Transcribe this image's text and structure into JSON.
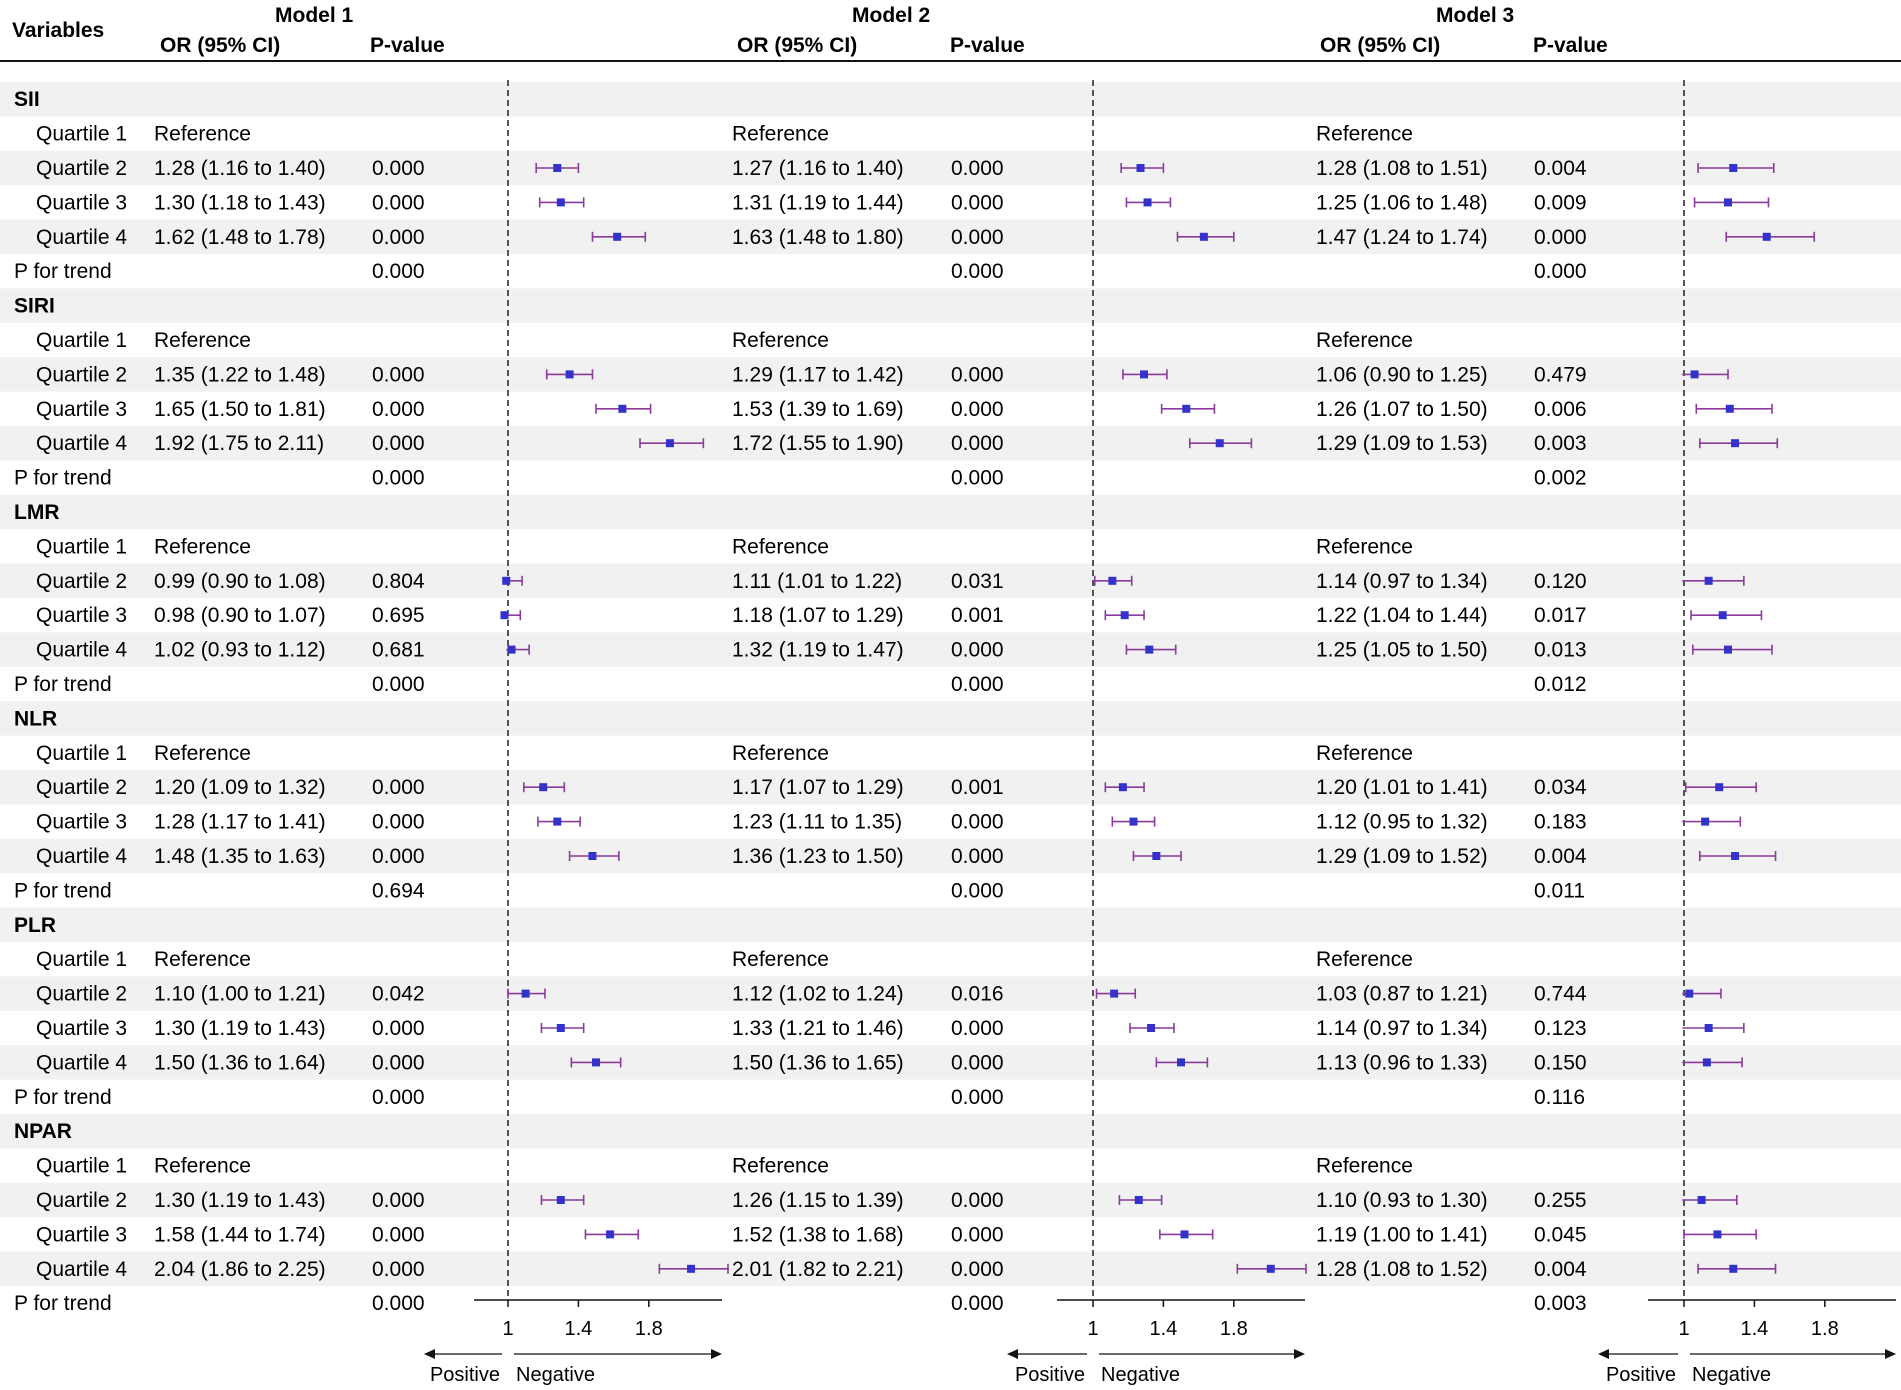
{
  "headers": {
    "variables": "Variables",
    "or_label": "OR (95% CI)",
    "p_label": "P-value",
    "models": [
      "Model 1",
      "Model 2",
      "Model 3"
    ]
  },
  "labels": {
    "reference": "Reference",
    "p_trend": "P for trend",
    "quartiles": [
      "Quartile 1",
      "Quartile 2",
      "Quartile 3",
      "Quartile 4"
    ],
    "positive": "Positive",
    "negative": "Negative"
  },
  "colors": {
    "marker": "#3333cc",
    "whisker": "#8a3b9b",
    "stripe": "#f1f1f1",
    "line": "#111111"
  },
  "chart_data": {
    "type": "forest",
    "xlim": [
      0.99,
      2.25
    ],
    "ticks": [
      1,
      1.4,
      1.8
    ],
    "tick_labels": [
      "1",
      "1.4",
      "1.8"
    ],
    "reference_line": 1,
    "groups": [
      {
        "name": "SII",
        "models": [
          {
            "rows": [
              {
                "or": 1.28,
                "lo": 1.16,
                "hi": 1.4,
                "text": "1.28 (1.16 to 1.40)",
                "p": "0.000"
              },
              {
                "or": 1.3,
                "lo": 1.18,
                "hi": 1.43,
                "text": "1.30 (1.18 to 1.43)",
                "p": "0.000"
              },
              {
                "or": 1.62,
                "lo": 1.48,
                "hi": 1.78,
                "text": "1.62 (1.48 to 1.78)",
                "p": "0.000"
              }
            ],
            "trend": "0.000"
          },
          {
            "rows": [
              {
                "or": 1.27,
                "lo": 1.16,
                "hi": 1.4,
                "text": "1.27 (1.16 to 1.40)",
                "p": "0.000"
              },
              {
                "or": 1.31,
                "lo": 1.19,
                "hi": 1.44,
                "text": "1.31 (1.19 to 1.44)",
                "p": "0.000"
              },
              {
                "or": 1.63,
                "lo": 1.48,
                "hi": 1.8,
                "text": "1.63 (1.48 to 1.80)",
                "p": "0.000"
              }
            ],
            "trend": "0.000"
          },
          {
            "rows": [
              {
                "or": 1.28,
                "lo": 1.08,
                "hi": 1.51,
                "text": "1.28 (1.08 to 1.51)",
                "p": "0.004"
              },
              {
                "or": 1.25,
                "lo": 1.06,
                "hi": 1.48,
                "text": "1.25 (1.06 to 1.48)",
                "p": "0.009"
              },
              {
                "or": 1.47,
                "lo": 1.24,
                "hi": 1.74,
                "text": "1.47 (1.24 to 1.74)",
                "p": "0.000"
              }
            ],
            "trend": "0.000"
          }
        ]
      },
      {
        "name": "SIRI",
        "models": [
          {
            "rows": [
              {
                "or": 1.35,
                "lo": 1.22,
                "hi": 1.48,
                "text": "1.35 (1.22 to 1.48)",
                "p": "0.000"
              },
              {
                "or": 1.65,
                "lo": 1.5,
                "hi": 1.81,
                "text": "1.65 (1.50 to 1.81)",
                "p": "0.000"
              },
              {
                "or": 1.92,
                "lo": 1.75,
                "hi": 2.11,
                "text": "1.92 (1.75 to 2.11)",
                "p": "0.000"
              }
            ],
            "trend": "0.000"
          },
          {
            "rows": [
              {
                "or": 1.29,
                "lo": 1.17,
                "hi": 1.42,
                "text": "1.29 (1.17 to 1.42)",
                "p": "0.000"
              },
              {
                "or": 1.53,
                "lo": 1.39,
                "hi": 1.69,
                "text": "1.53 (1.39 to 1.69)",
                "p": "0.000"
              },
              {
                "or": 1.72,
                "lo": 1.55,
                "hi": 1.9,
                "text": "1.72 (1.55 to 1.90)",
                "p": "0.000"
              }
            ],
            "trend": "0.000"
          },
          {
            "rows": [
              {
                "or": 1.06,
                "lo": 0.9,
                "hi": 1.25,
                "text": "1.06 (0.90 to 1.25)",
                "p": "0.479"
              },
              {
                "or": 1.26,
                "lo": 1.07,
                "hi": 1.5,
                "text": "1.26 (1.07 to 1.50)",
                "p": "0.006"
              },
              {
                "or": 1.29,
                "lo": 1.09,
                "hi": 1.53,
                "text": "1.29 (1.09 to 1.53)",
                "p": "0.003"
              }
            ],
            "trend": "0.002"
          }
        ]
      },
      {
        "name": "LMR",
        "models": [
          {
            "rows": [
              {
                "or": 0.99,
                "lo": 0.9,
                "hi": 1.08,
                "text": "0.99 (0.90 to 1.08)",
                "p": "0.804"
              },
              {
                "or": 0.98,
                "lo": 0.9,
                "hi": 1.07,
                "text": "0.98 (0.90 to 1.07)",
                "p": "0.695"
              },
              {
                "or": 1.02,
                "lo": 0.93,
                "hi": 1.12,
                "text": "1.02 (0.93 to 1.12)",
                "p": "0.681"
              }
            ],
            "trend": "0.000"
          },
          {
            "rows": [
              {
                "or": 1.11,
                "lo": 1.01,
                "hi": 1.22,
                "text": "1.11 (1.01 to 1.22)",
                "p": "0.031"
              },
              {
                "or": 1.18,
                "lo": 1.07,
                "hi": 1.29,
                "text": "1.18 (1.07 to 1.29)",
                "p": "0.001"
              },
              {
                "or": 1.32,
                "lo": 1.19,
                "hi": 1.47,
                "text": "1.32 (1.19 to 1.47)",
                "p": "0.000"
              }
            ],
            "trend": "0.000"
          },
          {
            "rows": [
              {
                "or": 1.14,
                "lo": 0.97,
                "hi": 1.34,
                "text": "1.14 (0.97 to 1.34)",
                "p": "0.120"
              },
              {
                "or": 1.22,
                "lo": 1.04,
                "hi": 1.44,
                "text": "1.22 (1.04 to 1.44)",
                "p": "0.017"
              },
              {
                "or": 1.25,
                "lo": 1.05,
                "hi": 1.5,
                "text": "1.25 (1.05 to 1.50)",
                "p": "0.013"
              }
            ],
            "trend": "0.012"
          }
        ]
      },
      {
        "name": "NLR",
        "models": [
          {
            "rows": [
              {
                "or": 1.2,
                "lo": 1.09,
                "hi": 1.32,
                "text": "1.20 (1.09 to 1.32)",
                "p": "0.000"
              },
              {
                "or": 1.28,
                "lo": 1.17,
                "hi": 1.41,
                "text": "1.28 (1.17 to 1.41)",
                "p": "0.000"
              },
              {
                "or": 1.48,
                "lo": 1.35,
                "hi": 1.63,
                "text": "1.48 (1.35 to 1.63)",
                "p": "0.000"
              }
            ],
            "trend": "0.694"
          },
          {
            "rows": [
              {
                "or": 1.17,
                "lo": 1.07,
                "hi": 1.29,
                "text": "1.17 (1.07 to 1.29)",
                "p": "0.001"
              },
              {
                "or": 1.23,
                "lo": 1.11,
                "hi": 1.35,
                "text": "1.23 (1.11 to 1.35)",
                "p": "0.000"
              },
              {
                "or": 1.36,
                "lo": 1.23,
                "hi": 1.5,
                "text": "1.36 (1.23 to 1.50)",
                "p": "0.000"
              }
            ],
            "trend": "0.000"
          },
          {
            "rows": [
              {
                "or": 1.2,
                "lo": 1.01,
                "hi": 1.41,
                "text": "1.20 (1.01 to 1.41)",
                "p": "0.034"
              },
              {
                "or": 1.12,
                "lo": 0.95,
                "hi": 1.32,
                "text": "1.12 (0.95 to 1.32)",
                "p": "0.183"
              },
              {
                "or": 1.29,
                "lo": 1.09,
                "hi": 1.52,
                "text": "1.29 (1.09 to 1.52)",
                "p": "0.004"
              }
            ],
            "trend": "0.011"
          }
        ]
      },
      {
        "name": "PLR",
        "models": [
          {
            "rows": [
              {
                "or": 1.1,
                "lo": 1.0,
                "hi": 1.21,
                "text": "1.10 (1.00 to 1.21)",
                "p": "0.042"
              },
              {
                "or": 1.3,
                "lo": 1.19,
                "hi": 1.43,
                "text": "1.30 (1.19 to 1.43)",
                "p": "0.000"
              },
              {
                "or": 1.5,
                "lo": 1.36,
                "hi": 1.64,
                "text": "1.50 (1.36 to 1.64)",
                "p": "0.000"
              }
            ],
            "trend": "0.000"
          },
          {
            "rows": [
              {
                "or": 1.12,
                "lo": 1.02,
                "hi": 1.24,
                "text": "1.12 (1.02 to 1.24)",
                "p": "0.016"
              },
              {
                "or": 1.33,
                "lo": 1.21,
                "hi": 1.46,
                "text": "1.33 (1.21 to 1.46)",
                "p": "0.000"
              },
              {
                "or": 1.5,
                "lo": 1.36,
                "hi": 1.65,
                "text": "1.50 (1.36 to 1.65)",
                "p": "0.000"
              }
            ],
            "trend": "0.000"
          },
          {
            "rows": [
              {
                "or": 1.03,
                "lo": 0.87,
                "hi": 1.21,
                "text": "1.03 (0.87 to 1.21)",
                "p": "0.744"
              },
              {
                "or": 1.14,
                "lo": 0.97,
                "hi": 1.34,
                "text": "1.14 (0.97 to 1.34)",
                "p": "0.123"
              },
              {
                "or": 1.13,
                "lo": 0.96,
                "hi": 1.33,
                "text": "1.13 (0.96 to 1.33)",
                "p": "0.150"
              }
            ],
            "trend": "0.116"
          }
        ]
      },
      {
        "name": "NPAR",
        "models": [
          {
            "rows": [
              {
                "or": 1.3,
                "lo": 1.19,
                "hi": 1.43,
                "text": "1.30 (1.19 to 1.43)",
                "p": "0.000"
              },
              {
                "or": 1.58,
                "lo": 1.44,
                "hi": 1.74,
                "text": "1.58 (1.44 to 1.74)",
                "p": "0.000"
              },
              {
                "or": 2.04,
                "lo": 1.86,
                "hi": 2.25,
                "text": "2.04 (1.86 to 2.25)",
                "p": "0.000"
              }
            ],
            "trend": "0.000"
          },
          {
            "rows": [
              {
                "or": 1.26,
                "lo": 1.15,
                "hi": 1.39,
                "text": "1.26 (1.15 to 1.39)",
                "p": "0.000"
              },
              {
                "or": 1.52,
                "lo": 1.38,
                "hi": 1.68,
                "text": "1.52 (1.38 to 1.68)",
                "p": "0.000"
              },
              {
                "or": 2.01,
                "lo": 1.82,
                "hi": 2.21,
                "text": "2.01 (1.82 to 2.21)",
                "p": "0.000"
              }
            ],
            "trend": "0.000"
          },
          {
            "rows": [
              {
                "or": 1.1,
                "lo": 0.93,
                "hi": 1.3,
                "text": "1.10 (0.93 to 1.30)",
                "p": "0.255"
              },
              {
                "or": 1.19,
                "lo": 1.0,
                "hi": 1.41,
                "text": "1.19 (1.00 to 1.41)",
                "p": "0.045"
              },
              {
                "or": 1.28,
                "lo": 1.08,
                "hi": 1.52,
                "text": "1.28 (1.08 to 1.52)",
                "p": "0.004"
              }
            ],
            "trend": "0.003"
          }
        ]
      }
    ]
  }
}
